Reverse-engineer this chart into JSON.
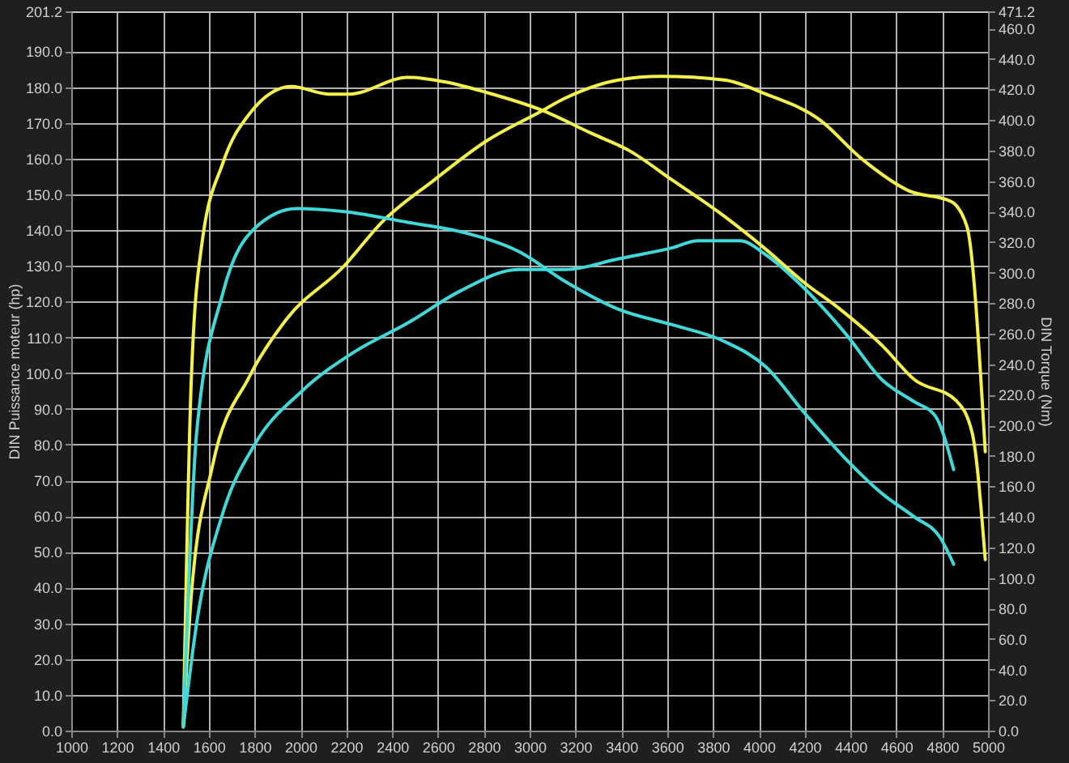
{
  "chart_data": {
    "type": "line",
    "ylabel": "DIN Puissance moteur (hp)",
    "y2label": "DIN Torque (Nm)",
    "xlim": [
      1000,
      5000
    ],
    "xticks": [
      1000,
      1200,
      1400,
      1600,
      1800,
      2000,
      2200,
      2400,
      2600,
      2800,
      3000,
      3200,
      3400,
      3600,
      3800,
      4000,
      4200,
      4400,
      4600,
      4800,
      5000
    ],
    "ylim": [
      0,
      201.2
    ],
    "yticks": [
      {
        "value": 0,
        "label": "0.0"
      },
      {
        "value": 10,
        "label": "10.0"
      },
      {
        "value": 20,
        "label": "20.0"
      },
      {
        "value": 30,
        "label": "30.0"
      },
      {
        "value": 40,
        "label": "40.0"
      },
      {
        "value": 50,
        "label": "50.0"
      },
      {
        "value": 60,
        "label": "60.0"
      },
      {
        "value": 70,
        "label": "70.0"
      },
      {
        "value": 80,
        "label": "80.0"
      },
      {
        "value": 90,
        "label": "90.0"
      },
      {
        "value": 100,
        "label": "100.0"
      },
      {
        "value": 110,
        "label": "110.0"
      },
      {
        "value": 120,
        "label": "120.0"
      },
      {
        "value": 130,
        "label": "130.0"
      },
      {
        "value": 140,
        "label": "140.0"
      },
      {
        "value": 150,
        "label": "150.0"
      },
      {
        "value": 160,
        "label": "160.0"
      },
      {
        "value": 170,
        "label": "170.0"
      },
      {
        "value": 180,
        "label": "180.0"
      },
      {
        "value": 190,
        "label": "190.0"
      },
      {
        "value": 201.2,
        "label": "201.2"
      }
    ],
    "y2lim": [
      0,
      471.2
    ],
    "y2ticks": [
      {
        "value": 0,
        "label": "0.0"
      },
      {
        "value": 20,
        "label": "20.0"
      },
      {
        "value": 40,
        "label": "40.0"
      },
      {
        "value": 60,
        "label": "60.0"
      },
      {
        "value": 80,
        "label": "80.0"
      },
      {
        "value": 100,
        "label": "100.0"
      },
      {
        "value": 120,
        "label": "120.0"
      },
      {
        "value": 140,
        "label": "140.0"
      },
      {
        "value": 160,
        "label": "160.0"
      },
      {
        "value": 180,
        "label": "180.0"
      },
      {
        "value": 200,
        "label": "200.0"
      },
      {
        "value": 220,
        "label": "220.0"
      },
      {
        "value": 240,
        "label": "240.0"
      },
      {
        "value": 260,
        "label": "260.0"
      },
      {
        "value": 280,
        "label": "280.0"
      },
      {
        "value": 300,
        "label": "300.0"
      },
      {
        "value": 320,
        "label": "320.0"
      },
      {
        "value": 340,
        "label": "340.0"
      },
      {
        "value": 360,
        "label": "360.0"
      },
      {
        "value": 380,
        "label": "380.0"
      },
      {
        "value": 400,
        "label": "400.0"
      },
      {
        "value": 420,
        "label": "420.0"
      },
      {
        "value": 440,
        "label": "440.0"
      },
      {
        "value": 460,
        "label": "460.0"
      },
      {
        "value": 471.2,
        "label": "471.2"
      }
    ],
    "grid": true,
    "series": [
      {
        "color": "#f4f24a",
        "x": [
          1489,
          1524,
          1616,
          1777,
          1938,
          2191,
          2352,
          2583,
          2813,
          3043,
          3158,
          3388,
          3572,
          3849,
          4033,
          4263,
          4448,
          4655,
          4839,
          4908,
          4988
        ],
        "values": [
          1,
          38,
          74,
          99,
          115,
          130,
          142,
          154,
          165,
          173,
          177,
          182,
          183,
          182,
          178,
          171,
          160,
          151,
          148,
          141,
          78
        ]
      },
      {
        "color": "#3fd9d9",
        "x": [
          1489,
          1547,
          1662,
          1800,
          2007,
          2237,
          2468,
          2698,
          2951,
          3158,
          3388,
          3619,
          3734,
          3918,
          4033,
          4194,
          4379,
          4540,
          4678,
          4770,
          4850
        ],
        "values": [
          1,
          30,
          61,
          80,
          95,
          106,
          114,
          123,
          129,
          129,
          132,
          135,
          137,
          137,
          133,
          124,
          111,
          98,
          92,
          88,
          73
        ]
      },
      {
        "color": "#f4f24a",
        "axis": "y2",
        "x": [
          1489,
          1524,
          1570,
          1662,
          1777,
          1961,
          2122,
          2214,
          2468,
          2629,
          2813,
          3043,
          3274,
          3434,
          3619,
          3849,
          4033,
          4194,
          4355,
          4540,
          4678,
          4862,
          4931,
          4988
        ],
        "values": [
          4,
          231,
          319,
          372,
          404,
          422,
          417,
          417,
          428,
          425,
          418,
          407,
          391,
          380,
          361,
          337,
          315,
          294,
          276,
          252,
          230,
          216,
          195,
          112
        ]
      },
      {
        "color": "#3fd9d9",
        "axis": "y2",
        "x": [
          1489,
          1547,
          1662,
          1800,
          1984,
          2191,
          2468,
          2721,
          2951,
          3158,
          3388,
          3619,
          3849,
          4033,
          4194,
          4379,
          4540,
          4678,
          4793,
          4850
        ],
        "values": [
          4,
          195,
          287,
          329,
          342,
          340,
          333,
          326,
          314,
          294,
          276,
          266,
          255,
          238,
          209,
          178,
          155,
          140,
          126,
          109
        ]
      }
    ]
  }
}
